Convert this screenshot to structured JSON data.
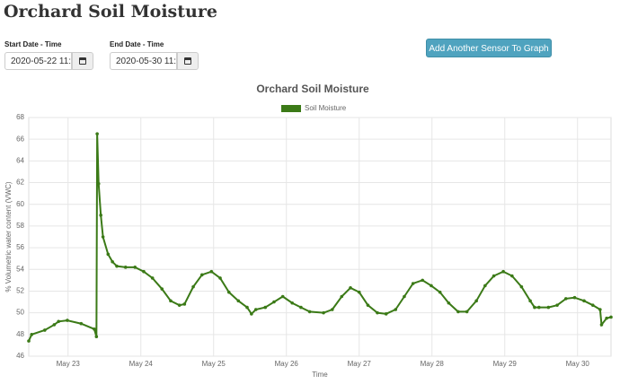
{
  "header": {
    "title": "Orchard Soil Moisture"
  },
  "form": {
    "start_label": "Start Date - Time",
    "start_value": "2020-05-22 11:",
    "end_label": "End Date - Time",
    "end_value": "2020-05-30 11:",
    "button": "Add Another Sensor To Graph"
  },
  "chart_data": {
    "type": "line",
    "title": "Orchard Soil Moisture",
    "x_label": "Time",
    "y_label": "% Volumetric water content (VWC)",
    "x": [
      22.46,
      22.5,
      22.68,
      22.81,
      22.87,
      22.99,
      23.18,
      23.36,
      23.39,
      23.4,
      23.42,
      23.45,
      23.48,
      23.55,
      23.61,
      23.67,
      23.79,
      23.92,
      24.04,
      24.16,
      24.29,
      24.41,
      24.53,
      24.6,
      24.72,
      24.84,
      24.97,
      25.09,
      25.21,
      25.34,
      25.46,
      25.52,
      25.58,
      25.71,
      25.83,
      25.95,
      26.08,
      26.2,
      26.32,
      26.51,
      26.63,
      26.76,
      26.88,
      27.0,
      27.12,
      27.25,
      27.37,
      27.5,
      27.62,
      27.74,
      27.87,
      27.99,
      28.11,
      28.23,
      28.36,
      28.48,
      28.61,
      28.73,
      28.85,
      28.98,
      29.1,
      29.23,
      29.35,
      29.41,
      29.47,
      29.6,
      29.72,
      29.84,
      29.96,
      30.09,
      30.21,
      30.31,
      30.33,
      30.4,
      30.46
    ],
    "series": [
      {
        "name": "Soil Moisture",
        "color": "#3b7a17",
        "values": [
          47.4,
          48.0,
          48.4,
          48.9,
          49.2,
          49.3,
          49.0,
          48.5,
          47.8,
          66.5,
          61.9,
          59,
          57,
          55.4,
          54.7,
          54.3,
          54.2,
          54.2,
          53.8,
          53.2,
          52.2,
          51.1,
          50.7,
          50.8,
          52.4,
          53.5,
          53.8,
          53.2,
          51.9,
          51.1,
          50.5,
          49.9,
          50.3,
          50.5,
          51.0,
          51.5,
          50.9,
          50.5,
          50.1,
          50.0,
          50.3,
          51.5,
          52.3,
          51.9,
          50.7,
          50.0,
          49.9,
          50.3,
          51.5,
          52.7,
          53.0,
          52.5,
          51.9,
          50.9,
          50.1,
          50.1,
          51.1,
          52.5,
          53.4,
          53.8,
          53.4,
          52.4,
          51.1,
          50.5,
          50.5,
          50.5,
          50.7,
          51.3,
          51.4,
          51.1,
          50.7,
          50.3,
          48.9,
          49.5,
          49.6
        ]
      }
    ],
    "xlim": [
      22.46,
      30.46
    ],
    "xticks": [
      {
        "value": 23,
        "label": "May 23"
      },
      {
        "value": 24,
        "label": "May 24"
      },
      {
        "value": 25,
        "label": "May 25"
      },
      {
        "value": 26,
        "label": "May 26"
      },
      {
        "value": 27,
        "label": "May 27"
      },
      {
        "value": 28,
        "label": "May 28"
      },
      {
        "value": 29,
        "label": "May 29"
      },
      {
        "value": 30,
        "label": "May 30"
      }
    ],
    "ylim": [
      46,
      68
    ],
    "yticks": [
      46,
      48,
      50,
      52,
      54,
      56,
      58,
      60,
      62,
      64,
      66,
      68
    ],
    "grid": true
  }
}
